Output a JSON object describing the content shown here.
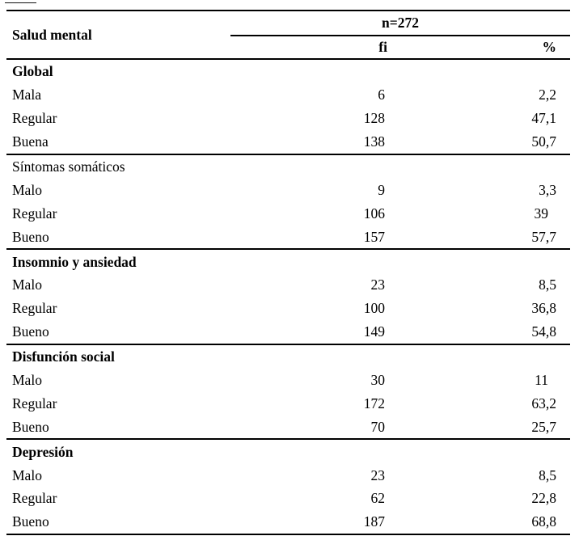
{
  "table": {
    "header": {
      "stub": "Salud mental",
      "group": "n=272",
      "columns": [
        "fi",
        "%"
      ]
    },
    "sections": [
      {
        "title": "Global",
        "title_bold": true,
        "rows": [
          {
            "label": "Mala",
            "fi": "6",
            "pct": "2,2"
          },
          {
            "label": "Regular",
            "fi": "128",
            "pct": "47,1"
          },
          {
            "label": "Buena",
            "fi": "138",
            "pct": "50,7"
          }
        ]
      },
      {
        "title": "Síntomas somáticos",
        "title_bold": false,
        "rows": [
          {
            "label": "Malo",
            "fi": "9",
            "pct": "3,3"
          },
          {
            "label": "Regular",
            "fi": "106",
            "pct": "39"
          },
          {
            "label": "Bueno",
            "fi": "157",
            "pct": "57,7"
          }
        ]
      },
      {
        "title": "Insomnio y ansiedad",
        "title_bold": true,
        "rows": [
          {
            "label": "Malo",
            "fi": "23",
            "pct": "8,5"
          },
          {
            "label": "Regular",
            "fi": "100",
            "pct": "36,8"
          },
          {
            "label": "Bueno",
            "fi": "149",
            "pct": "54,8"
          }
        ]
      },
      {
        "title": "Disfunción social",
        "title_bold": true,
        "rows": [
          {
            "label": "Malo",
            "fi": "30",
            "pct": "11"
          },
          {
            "label": "Regular",
            "fi": "172",
            "pct": "63,2"
          },
          {
            "label": "Bueno",
            "fi": "70",
            "pct": "25,7"
          }
        ]
      },
      {
        "title": "Depresión",
        "title_bold": true,
        "rows": [
          {
            "label": "Malo",
            "fi": "23",
            "pct": "8,5"
          },
          {
            "label": "Regular",
            "fi": "62",
            "pct": "22,8"
          },
          {
            "label": "Bueno",
            "fi": "187",
            "pct": "68,8"
          }
        ]
      }
    ]
  },
  "colors": {
    "text": "#000000",
    "rule": "#000000",
    "background": "#ffffff"
  }
}
